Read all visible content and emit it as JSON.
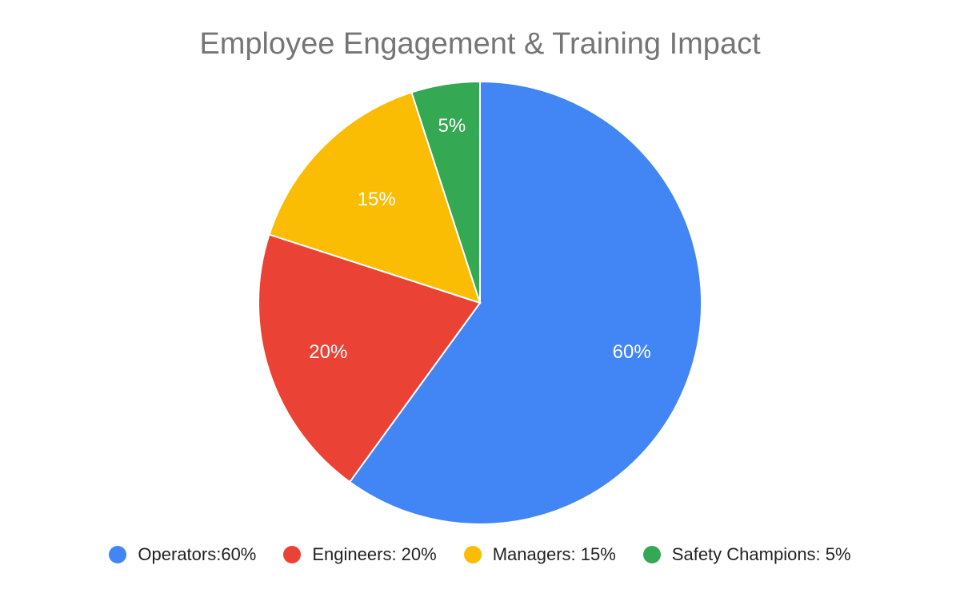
{
  "chart_data": {
    "type": "pie",
    "title": "Employee Engagement & Training Impact",
    "slices": [
      {
        "label": "Operators",
        "legend_text": "Operators:60%",
        "value": 60,
        "data_label": "60%",
        "color": "#4285f4"
      },
      {
        "label": "Engineers",
        "legend_text": "Engineers: 20%",
        "value": 20,
        "data_label": "20%",
        "color": "#ea4335"
      },
      {
        "label": "Managers",
        "legend_text": "Managers: 15%",
        "value": 15,
        "data_label": "15%",
        "color": "#fbbc04"
      },
      {
        "label": "Safety Champions",
        "legend_text": "Safety Champions: 5%",
        "value": 5,
        "data_label": "5%",
        "color": "#34a853"
      }
    ],
    "legend_position": "bottom",
    "start_angle": "12 o'clock",
    "direction": "clockwise"
  }
}
